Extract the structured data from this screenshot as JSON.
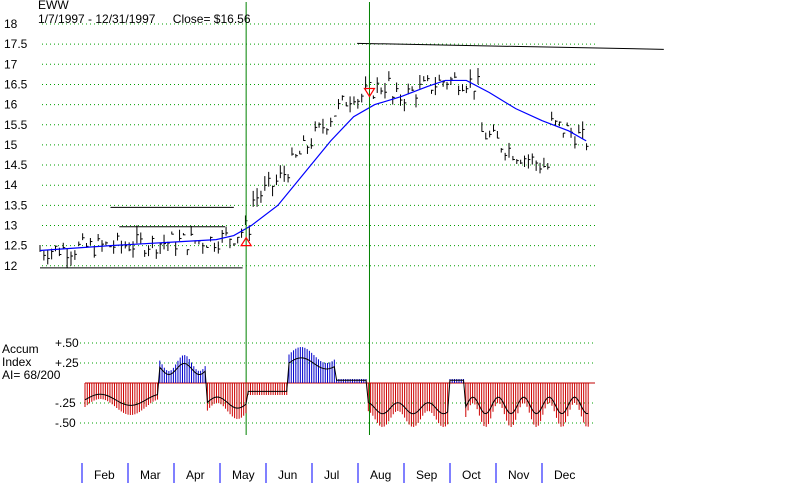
{
  "chart_data": [
    {
      "type": "ohlc",
      "ticker": "EWW",
      "subtitle": "1/7/1997 - 12/31/1997",
      "close_label": "Close= $16.56",
      "y_ticks": [
        "18",
        "17.5",
        "17",
        "16.5",
        "16",
        "15.5",
        "15",
        "14.5",
        "14",
        "13.5",
        "13",
        "12.5",
        "12"
      ],
      "ylim": [
        11.8,
        18
      ],
      "months": [
        "Feb",
        "Mar",
        "Apr",
        "May",
        "Jun",
        "Jul",
        "Aug",
        "Sep",
        "Oct",
        "Nov",
        "Dec"
      ],
      "grid": "horizontal dotted",
      "colors": {
        "price": "#000000",
        "moving_average": "#0000ff",
        "signal_lines": "#008000",
        "buy_arrow": "#ff0000",
        "sell_arrow": "#ff0000",
        "month_ticks": "#0000ff"
      },
      "moving_average": [
        {
          "date": 0,
          "y": 12.38
        },
        {
          "date": 40,
          "y": 12.5
        },
        {
          "date": 80,
          "y": 12.6
        },
        {
          "date": 100,
          "y": 12.65
        },
        {
          "date": 110,
          "y": 12.75
        },
        {
          "date": 120,
          "y": 13.0
        },
        {
          "date": 135,
          "y": 13.5
        },
        {
          "date": 150,
          "y": 14.3
        },
        {
          "date": 165,
          "y": 15.1
        },
        {
          "date": 178,
          "y": 15.7
        },
        {
          "date": 190,
          "y": 16.0
        },
        {
          "date": 205,
          "y": 16.2
        },
        {
          "date": 220,
          "y": 16.45
        },
        {
          "date": 230,
          "y": 16.6
        },
        {
          "date": 242,
          "y": 16.6
        },
        {
          "date": 255,
          "y": 16.3
        },
        {
          "date": 270,
          "y": 15.9
        },
        {
          "date": 285,
          "y": 15.6
        },
        {
          "date": 300,
          "y": 15.35
        },
        {
          "date": 310,
          "y": 15.1
        }
      ],
      "resistance_lines": [
        {
          "from": 0,
          "to": 115,
          "y": 11.95
        },
        {
          "from": 40,
          "to": 110,
          "y": 13.45
        },
        {
          "from": 45,
          "to": 105,
          "y": 12.97
        },
        {
          "from": 180,
          "to": 320,
          "y": 17.52
        }
      ],
      "signals": [
        {
          "date": 117,
          "type": "buy"
        },
        {
          "date": 187,
          "type": "sell"
        }
      ]
    },
    {
      "type": "bar",
      "title": "Accum Index",
      "readout": "AI= 68/200",
      "y_ticks": [
        "+.50",
        "+.25",
        "-.25",
        "-.50"
      ],
      "ylim": [
        -0.6,
        0.6
      ]
    }
  ],
  "labels": {
    "accum": "Accum",
    "index": "Index"
  }
}
